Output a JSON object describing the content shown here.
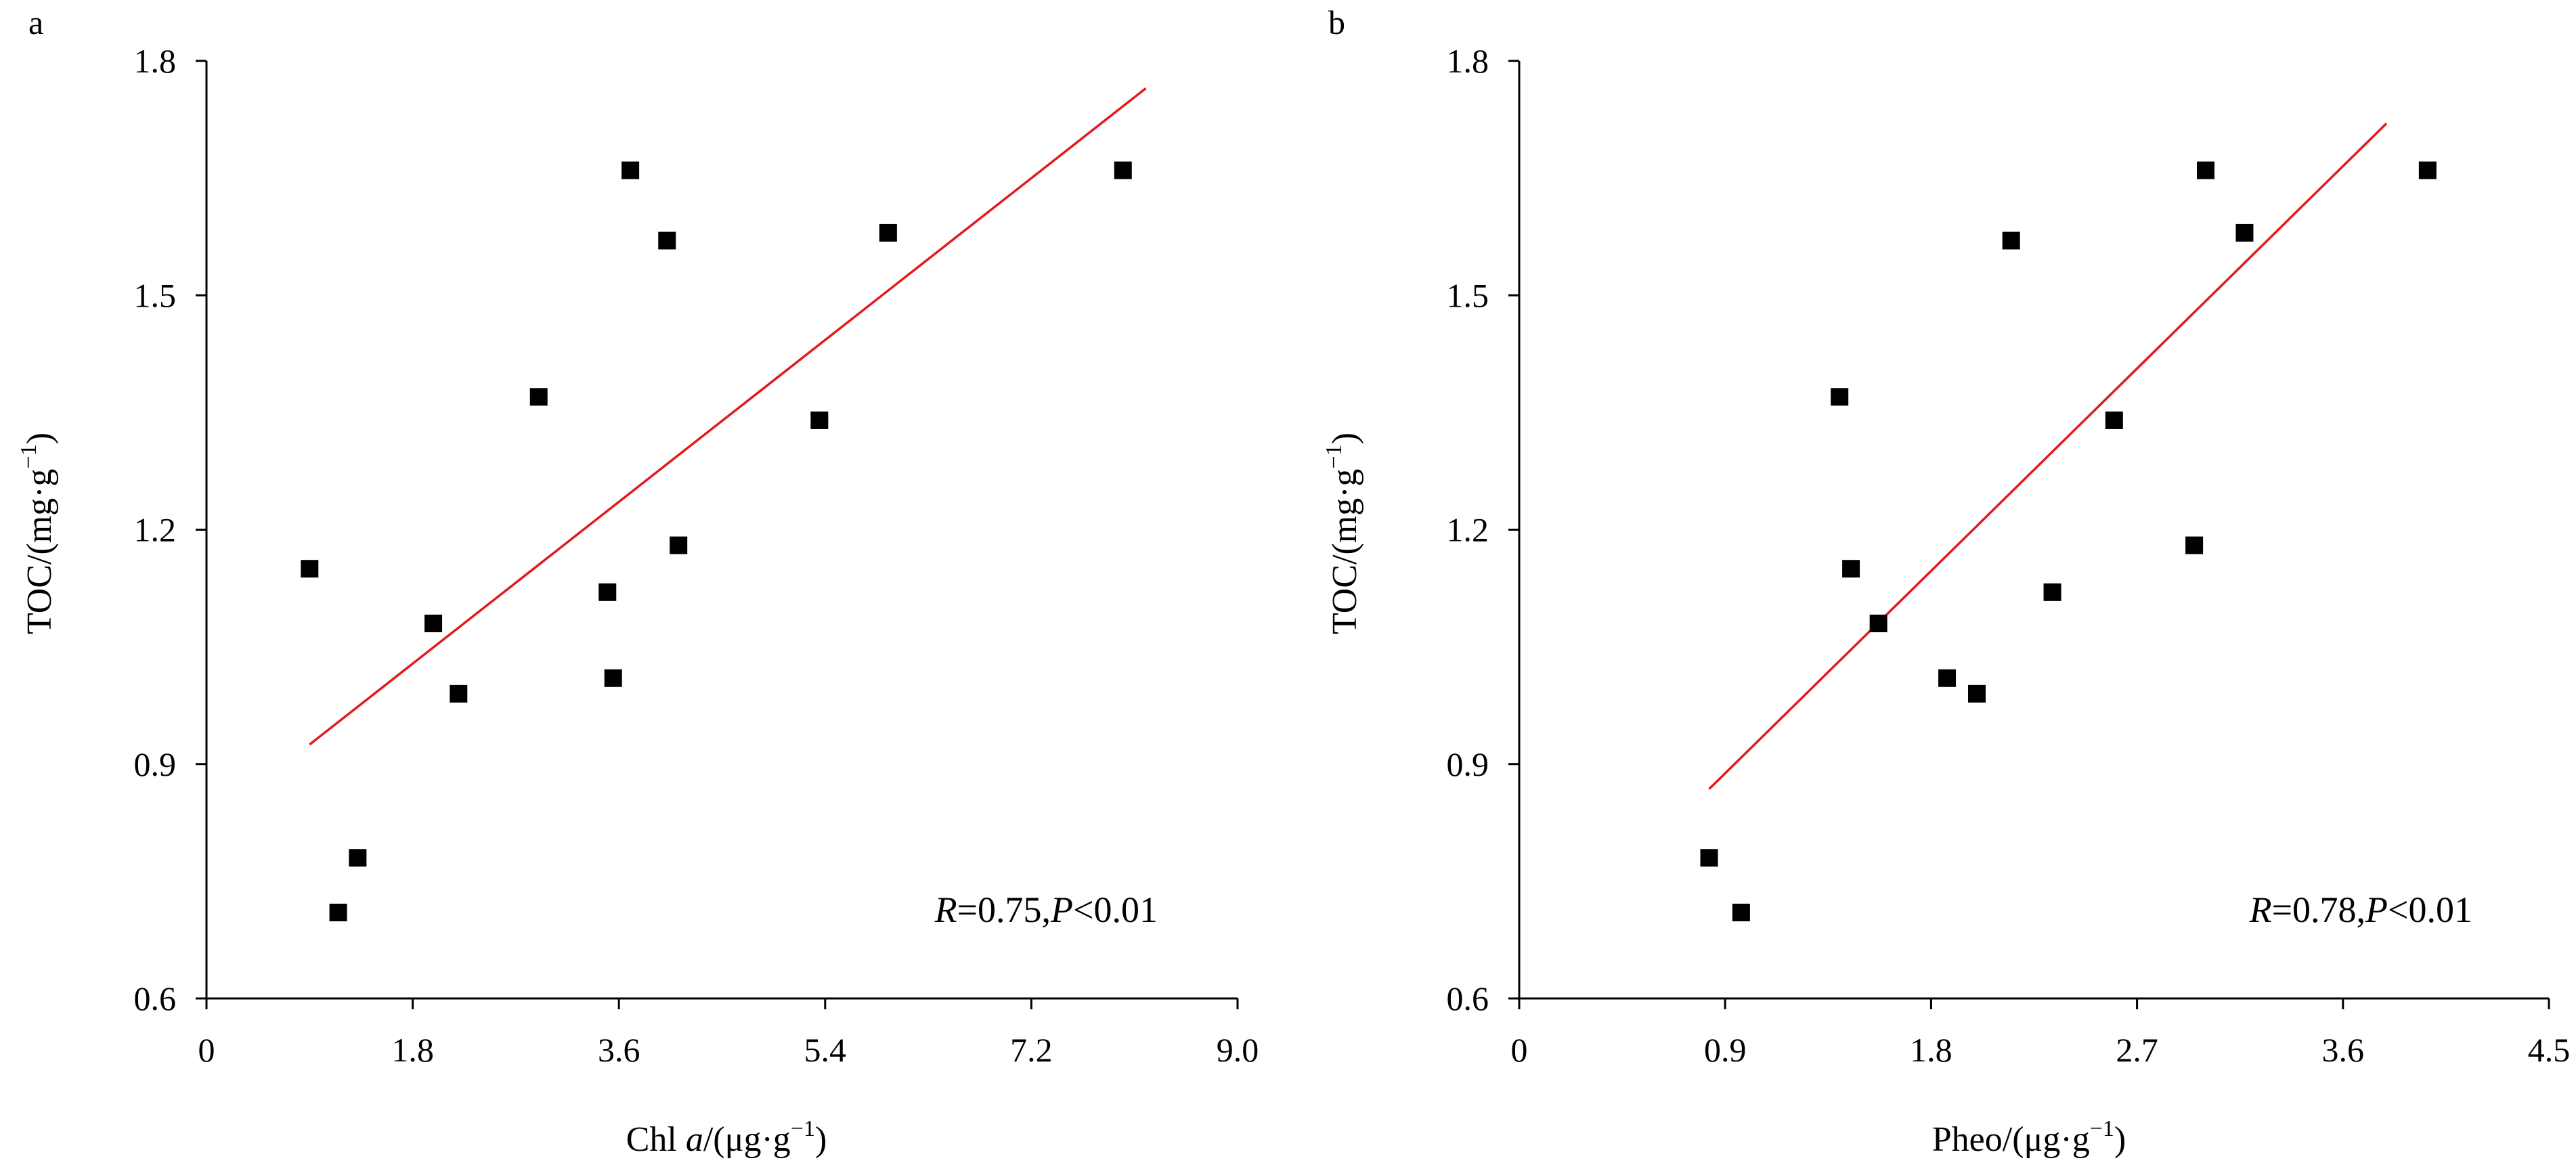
{
  "chart_data": [
    {
      "type": "scatter",
      "panel_label": "a",
      "xlabel": {
        "pre": "Chl ",
        "italic": "a",
        "post": "/(μg·g",
        "sup": "−1",
        "close": ")"
      },
      "ylabel": {
        "pre": "TOC/(mg·g",
        "sup": "−1",
        "close": ")"
      },
      "xlim": [
        0,
        9.0
      ],
      "ylim": [
        0.6,
        1.8
      ],
      "xticks": [
        "0",
        "1.8",
        "3.6",
        "5.4",
        "7.2",
        "9.0"
      ],
      "yticks": [
        "0.6",
        "0.9",
        "1.2",
        "1.5",
        "1.8"
      ],
      "grid": false,
      "annotation": {
        "r_sym": "R",
        "r_val": "=0.75,",
        "p_sym": "P",
        "p_val": "<0.01"
      },
      "points": [
        {
          "x": 0.9,
          "y": 1.15
        },
        {
          "x": 1.15,
          "y": 0.71
        },
        {
          "x": 1.32,
          "y": 0.78
        },
        {
          "x": 1.98,
          "y": 1.08
        },
        {
          "x": 2.2,
          "y": 0.99
        },
        {
          "x": 2.9,
          "y": 1.37
        },
        {
          "x": 3.5,
          "y": 1.12
        },
        {
          "x": 3.55,
          "y": 1.01
        },
        {
          "x": 3.7,
          "y": 1.66
        },
        {
          "x": 4.02,
          "y": 1.57
        },
        {
          "x": 4.12,
          "y": 1.18
        },
        {
          "x": 5.35,
          "y": 1.34
        },
        {
          "x": 5.95,
          "y": 1.58
        },
        {
          "x": 8.0,
          "y": 1.66
        }
      ],
      "fit_line": {
        "x": [
          0.9,
          8.2
        ],
        "y": [
          0.925,
          1.765
        ],
        "color": "#e31a1c"
      },
      "marker_color": "#000000"
    },
    {
      "type": "scatter",
      "panel_label": "b",
      "xlabel": {
        "pre": "Pheo/(μg·g",
        "sup": "−1",
        "close": ")"
      },
      "ylabel": {
        "pre": "TOC/(mg·g",
        "sup": "−1",
        "close": ")"
      },
      "xlim": [
        0,
        4.5
      ],
      "ylim": [
        0.6,
        1.8
      ],
      "xticks": [
        "0",
        "0.9",
        "1.8",
        "2.7",
        "3.6",
        "4.5"
      ],
      "yticks": [
        "0.6",
        "0.9",
        "1.2",
        "1.5",
        "1.8"
      ],
      "grid": false,
      "annotation": {
        "r_sym": "R",
        "r_val": "=0.78,",
        "p_sym": "P",
        "p_val": "<0.01"
      },
      "points": [
        {
          "x": 0.83,
          "y": 0.78
        },
        {
          "x": 0.97,
          "y": 0.71
        },
        {
          "x": 1.4,
          "y": 1.37
        },
        {
          "x": 1.45,
          "y": 1.15
        },
        {
          "x": 1.57,
          "y": 1.08
        },
        {
          "x": 1.87,
          "y": 1.01
        },
        {
          "x": 2.0,
          "y": 0.99
        },
        {
          "x": 2.15,
          "y": 1.57
        },
        {
          "x": 2.33,
          "y": 1.12
        },
        {
          "x": 2.6,
          "y": 1.34
        },
        {
          "x": 2.95,
          "y": 1.18
        },
        {
          "x": 3.0,
          "y": 1.66
        },
        {
          "x": 3.17,
          "y": 1.58
        },
        {
          "x": 3.97,
          "y": 1.66
        }
      ],
      "fit_line": {
        "x": [
          0.83,
          3.79
        ],
        "y": [
          0.868,
          1.72
        ],
        "color": "#e31a1c"
      },
      "marker_color": "#000000"
    }
  ]
}
